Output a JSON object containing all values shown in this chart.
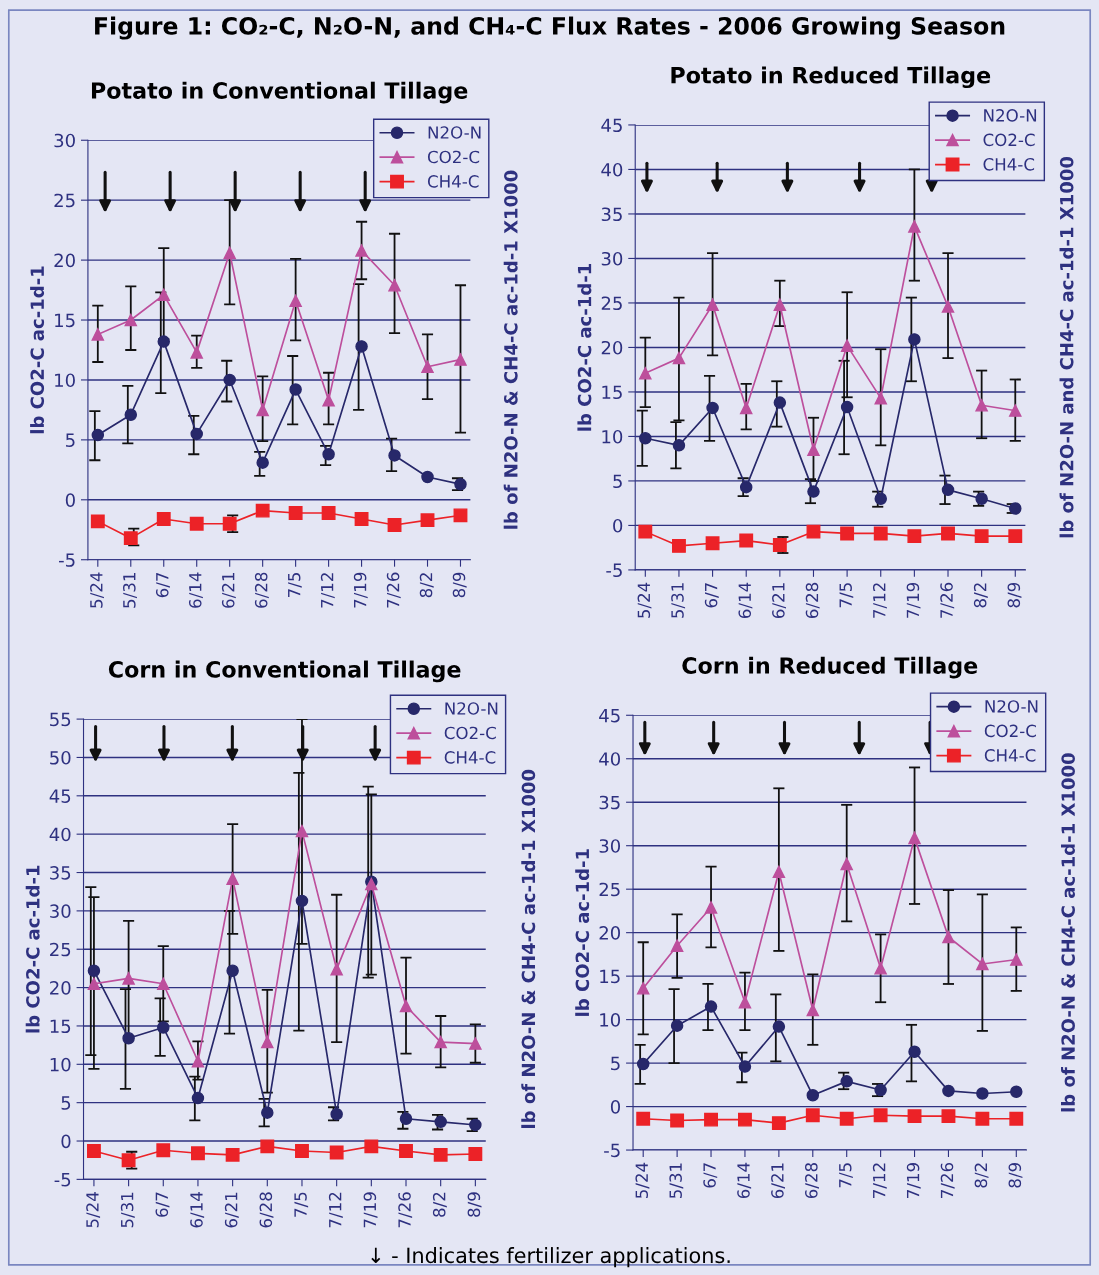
{
  "chart_data": [
    {
      "type": "line",
      "title": "Potato in Conventional Tillage",
      "ylabel": "lb CO2-C ac-1d-1",
      "y2label": "lb of N2O-N & CH4-C ac-1d-1 X1000",
      "categories": [
        "5/24",
        "5/31",
        "6/7",
        "6/14",
        "6/21",
        "6/28",
        "7/5",
        "7/12",
        "7/19",
        "7/26",
        "8/2",
        "8/9"
      ],
      "ylim": [
        -5,
        30
      ],
      "yticks": [
        -5,
        0,
        5,
        10,
        15,
        20,
        25,
        30
      ],
      "grid": "y",
      "legend": "top right",
      "series": [
        {
          "name": "N2O-N",
          "color": "#27286a",
          "marker": "circle",
          "values": [
            5.4,
            7.1,
            13.2,
            5.5,
            10.0,
            3.1,
            9.2,
            3.8,
            12.8,
            3.7,
            1.9,
            1.3
          ],
          "errors": [
            [
              3.3,
              7.4
            ],
            [
              4.7,
              9.5
            ],
            [
              8.9,
              17.3
            ],
            [
              3.8,
              7.0
            ],
            [
              8.2,
              11.6
            ],
            [
              2.0,
              4.0
            ],
            [
              6.3,
              12.0
            ],
            [
              2.9,
              4.5
            ],
            [
              7.5,
              18.0
            ],
            [
              2.4,
              5.1
            ],
            null,
            [
              0.8,
              1.8
            ]
          ]
        },
        {
          "name": "CO2-C",
          "color": "#bd4f9c",
          "marker": "triangle",
          "values": [
            13.8,
            15.0,
            17.1,
            12.3,
            20.6,
            7.5,
            16.6,
            8.3,
            20.8,
            17.9,
            11.1,
            11.7
          ],
          "errors": [
            [
              11.5,
              16.2
            ],
            [
              12.5,
              17.8
            ],
            [
              13.4,
              21.0
            ],
            [
              11.0,
              13.7
            ],
            [
              16.3,
              25.0
            ],
            [
              4.9,
              10.3
            ],
            [
              13.3,
              20.1
            ],
            [
              6.3,
              10.6
            ],
            [
              18.4,
              23.2
            ],
            [
              13.9,
              22.2
            ],
            [
              8.4,
              13.8
            ],
            [
              5.6,
              17.9
            ]
          ]
        },
        {
          "name": "CH4-C",
          "color": "#ec2227",
          "marker": "square",
          "values": [
            -1.8,
            -3.2,
            -1.6,
            -2.0,
            -2.0,
            -0.9,
            -1.1,
            -1.1,
            -1.6,
            -2.1,
            -1.7,
            -1.3
          ],
          "errors": [
            null,
            [
              -3.8,
              -2.4
            ],
            null,
            null,
            [
              -2.7,
              -1.3
            ],
            null,
            null,
            null,
            null,
            null,
            null,
            null
          ]
        }
      ],
      "annotations": [
        "Figure 1: CO₂-C, N₂O-N, and CH₄-C Flux Rates - 2006 Growing Season"
      ]
    },
    {
      "type": "line",
      "title": "Potato in Reduced Tillage",
      "ylabel": "lb CO2-C ac-1d-1",
      "y2label": "lb of N2O-N and CH4-C ac-1d-1 X1000",
      "categories": [
        "5/24",
        "5/31",
        "6/7",
        "6/14",
        "6/21",
        "6/28",
        "7/5",
        "7/12",
        "7/19",
        "7/26",
        "8/2",
        "8/9"
      ],
      "ylim": [
        -5,
        45
      ],
      "yticks": [
        -5,
        0,
        5,
        10,
        15,
        20,
        25,
        30,
        35,
        40,
        45
      ],
      "grid": "y",
      "legend": "top right",
      "series": [
        {
          "name": "N2O-N",
          "color": "#27286a",
          "marker": "circle",
          "values": [
            9.8,
            9.0,
            13.2,
            4.3,
            13.8,
            3.8,
            13.3,
            3.0,
            20.9,
            4.0,
            3.0,
            1.9
          ],
          "errors": [
            [
              6.7,
              12.9
            ],
            [
              6.4,
              11.6
            ],
            [
              9.5,
              16.8
            ],
            [
              3.3,
              5.3
            ],
            [
              11.1,
              16.2
            ],
            [
              2.5,
              5.2
            ],
            [
              8.0,
              18.5
            ],
            [
              2.1,
              3.8
            ],
            [
              16.2,
              25.6
            ],
            [
              2.4,
              5.6
            ],
            [
              2.2,
              3.8
            ],
            [
              1.4,
              2.4
            ]
          ]
        },
        {
          "name": "CO2-C",
          "color": "#bd4f9c",
          "marker": "triangle",
          "values": [
            17.1,
            18.8,
            24.8,
            13.2,
            24.8,
            8.5,
            20.2,
            14.3,
            33.6,
            24.6,
            13.5,
            12.9
          ],
          "errors": [
            [
              13.3,
              21.1
            ],
            [
              11.8,
              25.6
            ],
            [
              19.1,
              30.6
            ],
            [
              10.8,
              15.9
            ],
            [
              22.4,
              27.5
            ],
            [
              5.0,
              12.1
            ],
            [
              14.4,
              26.2
            ],
            [
              9.0,
              19.8
            ],
            [
              27.5,
              40.0
            ],
            [
              18.8,
              30.6
            ],
            [
              9.8,
              17.4
            ],
            [
              9.5,
              16.4
            ]
          ]
        },
        {
          "name": "CH4-C",
          "color": "#ec2227",
          "marker": "square",
          "values": [
            -0.7,
            -2.3,
            -2.0,
            -1.7,
            -2.2,
            -0.7,
            -0.9,
            -0.9,
            -1.2,
            -0.9,
            -1.2,
            -1.2
          ],
          "errors": [
            null,
            null,
            null,
            null,
            [
              -3.1,
              -1.3
            ],
            null,
            null,
            null,
            null,
            null,
            null,
            null
          ]
        }
      ]
    },
    {
      "type": "line",
      "title": "Corn in Conventional Tillage",
      "ylabel": "lb CO2-C ac-1d-1",
      "y2label": "lb of N2O-N & CH4-C ac-1d-1 X1000",
      "categories": [
        "5/24",
        "5/31",
        "6/7",
        "6/14",
        "6/21",
        "6/28",
        "7/5",
        "7/12",
        "7/19",
        "7/26",
        "8/2",
        "8/9"
      ],
      "ylim": [
        -5,
        55
      ],
      "yticks": [
        -5,
        0,
        5,
        10,
        15,
        20,
        25,
        30,
        35,
        40,
        45,
        50,
        55
      ],
      "grid": "y",
      "legend": "top right",
      "series": [
        {
          "name": "N2O-N",
          "color": "#27286a",
          "marker": "circle",
          "values": [
            22.2,
            13.4,
            14.8,
            5.6,
            22.2,
            3.7,
            31.3,
            3.5,
            33.8,
            2.9,
            2.5,
            2.1
          ],
          "errors": [
            [
              11.2,
              33.1
            ],
            [
              6.8,
              19.8
            ],
            [
              11.1,
              18.6
            ],
            [
              2.7,
              8.4
            ],
            [
              14.0,
              30.0
            ],
            [
              1.9,
              5.5
            ],
            [
              14.4,
              48.0
            ],
            [
              2.7,
              4.4
            ],
            [
              21.3,
              46.2
            ],
            [
              1.6,
              3.8
            ],
            [
              1.5,
              3.4
            ],
            [
              1.3,
              2.9
            ]
          ]
        },
        {
          "name": "CO2-C",
          "color": "#bd4f9c",
          "marker": "triangle",
          "values": [
            20.5,
            21.2,
            20.5,
            10.4,
            34.2,
            12.9,
            40.4,
            22.4,
            33.5,
            17.6,
            12.9,
            12.7
          ],
          "errors": [
            [
              9.4,
              31.8
            ],
            [
              13.7,
              28.7
            ],
            [
              15.6,
              25.4
            ],
            [
              8.0,
              13.0
            ],
            [
              27.0,
              41.3
            ],
            [
              6.3,
              19.7
            ],
            [
              25.7,
              55.0
            ],
            [
              12.9,
              32.1
            ],
            [
              21.7,
              45.2
            ],
            [
              11.4,
              23.9
            ],
            [
              9.6,
              16.3
            ],
            [
              10.2,
              15.2
            ]
          ]
        },
        {
          "name": "CH4-C",
          "color": "#ec2227",
          "marker": "square",
          "values": [
            -1.3,
            -2.5,
            -1.2,
            -1.6,
            -1.8,
            -0.7,
            -1.3,
            -1.5,
            -0.7,
            -1.3,
            -1.8,
            -1.7
          ],
          "errors": [
            null,
            [
              -3.6,
              -1.4
            ],
            null,
            null,
            null,
            null,
            null,
            null,
            null,
            null,
            null,
            null
          ]
        }
      ]
    },
    {
      "type": "line",
      "title": "Corn in Reduced Tillage",
      "ylabel": "lb CO2-C ac-1d-1",
      "y2label": "lb of N2O-N & CH4-C ac-1d-1 X1000",
      "categories": [
        "5/24",
        "5/31",
        "6/7",
        "6/14",
        "6/21",
        "6/28",
        "7/5",
        "7/12",
        "7/19",
        "7/26",
        "8/2",
        "8/9"
      ],
      "ylim": [
        -5,
        45
      ],
      "yticks": [
        -5,
        0,
        5,
        10,
        15,
        20,
        25,
        30,
        35,
        40,
        45
      ],
      "grid": "y",
      "legend": "top right",
      "series": [
        {
          "name": "N2O-N",
          "color": "#27286a",
          "marker": "circle",
          "values": [
            4.9,
            9.3,
            11.5,
            4.6,
            9.2,
            1.3,
            2.9,
            1.9,
            6.3,
            1.8,
            1.5,
            1.7
          ],
          "errors": [
            [
              2.6,
              7.1
            ],
            [
              5.0,
              13.5
            ],
            [
              8.8,
              14.1
            ],
            [
              2.8,
              6.2
            ],
            [
              5.2,
              12.9
            ],
            null,
            [
              2.0,
              3.9
            ],
            [
              1.2,
              2.6
            ],
            [
              2.9,
              9.4
            ],
            null,
            null,
            null
          ]
        },
        {
          "name": "CO2-C",
          "color": "#bd4f9c",
          "marker": "triangle",
          "values": [
            13.6,
            18.5,
            22.9,
            12.0,
            27.0,
            11.1,
            27.9,
            15.9,
            30.9,
            19.5,
            16.4,
            16.9
          ],
          "errors": [
            [
              8.3,
              18.9
            ],
            [
              14.8,
              22.1
            ],
            [
              18.3,
              27.6
            ],
            [
              8.8,
              15.4
            ],
            [
              17.9,
              36.6
            ],
            [
              7.1,
              15.2
            ],
            [
              21.3,
              34.7
            ],
            [
              12.0,
              19.8
            ],
            [
              23.3,
              39.0
            ],
            [
              14.1,
              24.9
            ],
            [
              8.7,
              24.4
            ],
            [
              13.3,
              20.6
            ]
          ]
        },
        {
          "name": "CH4-C",
          "color": "#ec2227",
          "marker": "square",
          "values": [
            -1.4,
            -1.6,
            -1.5,
            -1.5,
            -1.9,
            -1.0,
            -1.4,
            -1.0,
            -1.1,
            -1.1,
            -1.4,
            -1.4
          ]
        }
      ],
      "annotations": [
        "↓ - Indicates fertilizer applications."
      ]
    }
  ]
}
